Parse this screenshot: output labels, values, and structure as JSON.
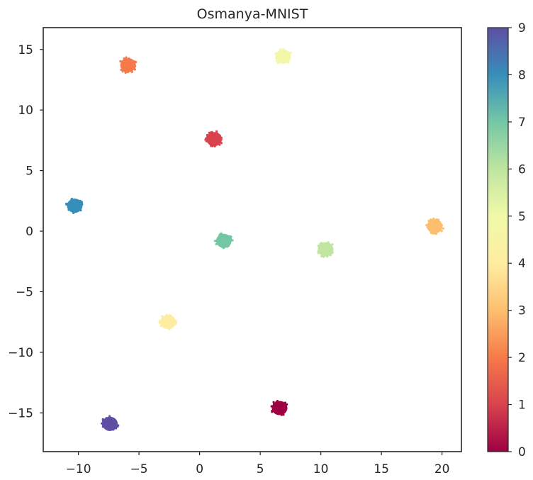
{
  "chart_data": {
    "type": "scatter",
    "title": "Osmanya-MNIST",
    "xlabel": "",
    "ylabel": "",
    "xlim": [
      -12.9,
      21.6
    ],
    "ylim": [
      -18.2,
      16.8
    ],
    "xticks": [
      -10,
      -5,
      0,
      5,
      10,
      15,
      20
    ],
    "xtick_labels": [
      "−10",
      "−5",
      "0",
      "5",
      "10",
      "15",
      "20"
    ],
    "yticks": [
      -15,
      -10,
      -5,
      0,
      5,
      10,
      15
    ],
    "ytick_labels": [
      "−15",
      "−10",
      "−5",
      "0",
      "5",
      "10",
      "15"
    ],
    "grid": false,
    "colormap": "Spectral",
    "colorbar": {
      "min": 0,
      "max": 9,
      "ticks": [
        0,
        1,
        2,
        3,
        4,
        5,
        6,
        7,
        8,
        9
      ],
      "tick_labels": [
        "0",
        "1",
        "2",
        "3",
        "4",
        "5",
        "6",
        "7",
        "8",
        "9"
      ]
    },
    "clusters": [
      {
        "label": 0,
        "x": 6.6,
        "y": -14.6,
        "color": "#9e0142"
      },
      {
        "label": 1,
        "x": 1.2,
        "y": 7.6,
        "color": "#d8434e"
      },
      {
        "label": 2,
        "x": -5.9,
        "y": 13.7,
        "color": "#f67a49"
      },
      {
        "label": 3,
        "x": 19.4,
        "y": 0.4,
        "color": "#fdbf6f"
      },
      {
        "label": 4,
        "x": -2.6,
        "y": -7.5,
        "color": "#feeda1"
      },
      {
        "label": 5,
        "x": 6.9,
        "y": 14.4,
        "color": "#f1f9a9"
      },
      {
        "label": 6,
        "x": 10.4,
        "y": -1.5,
        "color": "#bfe5a0"
      },
      {
        "label": 7,
        "x": 2.0,
        "y": -0.8,
        "color": "#74c7a5"
      },
      {
        "label": 8,
        "x": -10.3,
        "y": 2.1,
        "color": "#378ebb"
      },
      {
        "label": 9,
        "x": -7.4,
        "y": -15.9,
        "color": "#5e4fa2"
      }
    ]
  }
}
